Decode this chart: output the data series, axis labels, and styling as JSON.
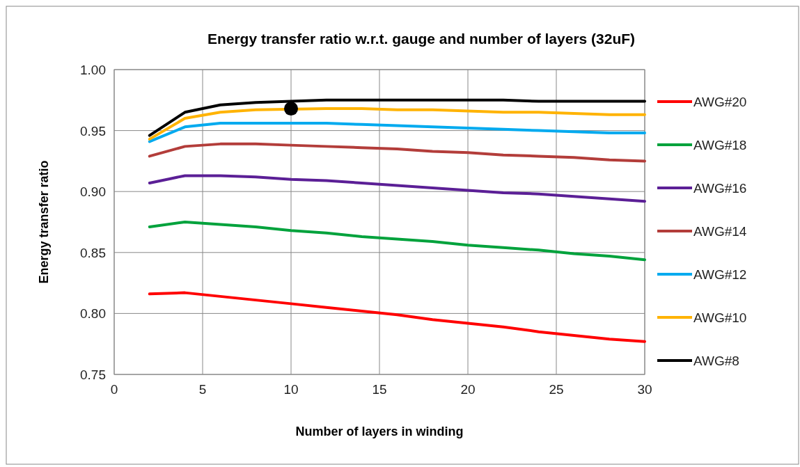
{
  "chart_data": {
    "type": "line",
    "title": "Energy transfer ratio w.r.t. gauge and number of layers (32uF)",
    "xlabel": "Number of layers in winding",
    "ylabel": "Energy transfer ratio",
    "x": [
      2,
      4,
      6,
      8,
      10,
      12,
      14,
      16,
      18,
      20,
      22,
      24,
      26,
      28,
      30
    ],
    "series": [
      {
        "name": "AWG#20",
        "color": "#ff0000",
        "values": [
          0.816,
          0.817,
          0.814,
          0.811,
          0.808,
          0.805,
          0.802,
          0.799,
          0.795,
          0.792,
          0.789,
          0.785,
          0.782,
          0.779,
          0.777
        ]
      },
      {
        "name": "AWG#18",
        "color": "#00a23c",
        "values": [
          0.871,
          0.875,
          0.873,
          0.871,
          0.868,
          0.866,
          0.863,
          0.861,
          0.859,
          0.856,
          0.854,
          0.852,
          0.849,
          0.847,
          0.844
        ]
      },
      {
        "name": "AWG#16",
        "color": "#5b1f96",
        "values": [
          0.907,
          0.913,
          0.913,
          0.912,
          0.91,
          0.909,
          0.907,
          0.905,
          0.903,
          0.901,
          0.899,
          0.898,
          0.896,
          0.894,
          0.892
        ]
      },
      {
        "name": "AWG#14",
        "color": "#b33d3a",
        "values": [
          0.929,
          0.937,
          0.939,
          0.939,
          0.938,
          0.937,
          0.936,
          0.935,
          0.933,
          0.932,
          0.93,
          0.929,
          0.928,
          0.926,
          0.925
        ]
      },
      {
        "name": "AWG#12",
        "color": "#00aaef",
        "values": [
          0.941,
          0.953,
          0.956,
          0.956,
          0.956,
          0.956,
          0.955,
          0.954,
          0.953,
          0.952,
          0.951,
          0.95,
          0.949,
          0.948,
          0.948
        ]
      },
      {
        "name": "AWG#10",
        "color": "#ffb300",
        "values": [
          0.943,
          0.96,
          0.965,
          0.967,
          null,
          0.968,
          0.968,
          0.967,
          0.967,
          0.966,
          0.965,
          0.965,
          0.964,
          0.963,
          0.963
        ]
      },
      {
        "name": "AWG#8",
        "color": "#000000",
        "values": [
          0.946,
          0.965,
          0.971,
          0.973,
          0.974,
          0.975,
          0.975,
          0.975,
          0.975,
          0.975,
          0.975,
          0.974,
          0.974,
          0.974,
          0.974
        ]
      },
      {
        "type": "scatter",
        "color": "#000000",
        "x": [
          10
        ],
        "values": [
          0.968
        ],
        "marker": "circle"
      }
    ],
    "xlim": [
      0,
      30
    ],
    "xticks": [
      0,
      5,
      10,
      15,
      20,
      25,
      30
    ],
    "ylim": [
      0.75,
      1.0
    ],
    "yticks": [
      {
        "value": 0.75,
        "label": "0.75"
      },
      {
        "value": 0.8,
        "label": "0.80"
      },
      {
        "value": 0.85,
        "label": "0.85"
      },
      {
        "value": 0.9,
        "label": "0.90"
      },
      {
        "value": 0.95,
        "label": "0.95"
      },
      {
        "value": 1.0,
        "label": "1.00"
      }
    ],
    "grid": true,
    "legend": "right",
    "marker": "none",
    "line_style": "solid"
  }
}
